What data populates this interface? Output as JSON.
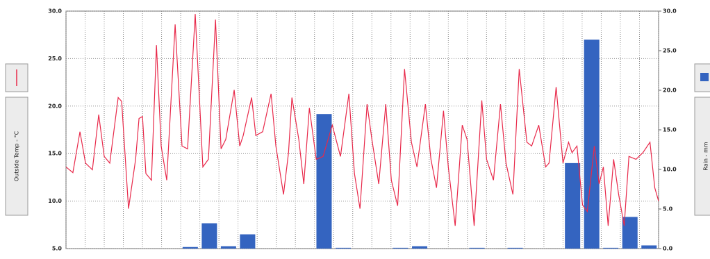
{
  "chart_data": {
    "type": "line",
    "ylabel": "Outside Temp - °C",
    "y2label": "Rain - mm",
    "xlim": [
      0,
      31
    ],
    "xticks": [
      0,
      1,
      2,
      3,
      4,
      5,
      6,
      7,
      8,
      9,
      10,
      11,
      12,
      13,
      14,
      15,
      16,
      17,
      18,
      19,
      20,
      21,
      22,
      23,
      24,
      25,
      26,
      27,
      28,
      29,
      30,
      31
    ],
    "ylim": [
      5,
      30
    ],
    "yticks": [
      {
        "value": 5,
        "label": "5.0"
      },
      {
        "value": 10,
        "label": "10.0"
      },
      {
        "value": 15,
        "label": "15.0"
      },
      {
        "value": 20,
        "label": "20.0"
      },
      {
        "value": 25,
        "label": "25.0"
      },
      {
        "value": 30,
        "label": "30.0"
      }
    ],
    "y2lim": [
      0,
      30
    ],
    "y2ticks": [
      {
        "value": 0,
        "label": "0.0"
      },
      {
        "value": 5,
        "label": "5.0"
      },
      {
        "value": 10,
        "label": "10.0"
      },
      {
        "value": 15,
        "label": "15.0"
      },
      {
        "value": 20,
        "label": "20.0"
      },
      {
        "value": 25,
        "label": "25.0"
      },
      {
        "value": 30,
        "label": "30.0"
      }
    ],
    "grid": true,
    "series": [
      {
        "type": "line",
        "color": "#e8294a",
        "x": [
          0,
          0.36,
          0.73,
          1.02,
          1.38,
          1.71,
          2.0,
          2.29,
          2.73,
          2.91,
          3.27,
          3.64,
          3.82,
          4.0,
          4.18,
          4.47,
          4.73,
          4.98,
          5.27,
          5.71,
          6.07,
          6.36,
          6.76,
          7.16,
          7.45,
          7.82,
          8.11,
          8.36,
          8.8,
          9.09,
          9.27,
          9.71,
          9.93,
          10.29,
          10.73,
          10.98,
          11.38,
          11.64,
          11.82,
          12.18,
          12.44,
          12.73,
          13.09,
          13.45,
          13.93,
          14.36,
          14.8,
          15.09,
          15.38,
          15.75,
          16.0,
          16.36,
          16.73,
          17.02,
          17.35,
          17.71,
          18.07,
          18.36,
          18.8,
          19.09,
          19.38,
          19.75,
          20.0,
          20.36,
          20.73,
          20.98,
          21.35,
          21.75,
          22.0,
          22.36,
          22.73,
          23.02,
          23.38,
          23.71,
          24.11,
          24.36,
          24.73,
          25.09,
          25.27,
          25.64,
          26.0,
          26.29,
          26.47,
          26.73,
          27.02,
          27.27,
          27.64,
          27.89,
          28.11,
          28.36,
          28.65,
          28.91,
          29.2,
          29.45,
          29.82,
          30.18,
          30.55,
          30.8,
          31.0
        ],
        "values": [
          13.6,
          13.0,
          17.3,
          14.0,
          13.3,
          19.1,
          14.7,
          14.0,
          20.9,
          20.5,
          9.2,
          14.4,
          18.7,
          18.9,
          12.9,
          12.2,
          26.4,
          15.8,
          12.2,
          28.6,
          15.8,
          15.5,
          29.7,
          13.6,
          14.4,
          29.1,
          15.5,
          16.5,
          21.7,
          15.8,
          16.9,
          20.9,
          16.9,
          17.3,
          21.3,
          15.8,
          10.7,
          15.1,
          20.9,
          16.5,
          11.8,
          19.8,
          14.4,
          14.7,
          18.0,
          14.7,
          21.3,
          12.9,
          9.2,
          20.2,
          16.5,
          11.8,
          20.2,
          12.2,
          9.5,
          23.9,
          16.2,
          13.6,
          20.2,
          14.4,
          11.4,
          19.5,
          13.6,
          7.4,
          18.0,
          16.5,
          7.4,
          20.6,
          14.4,
          12.2,
          20.2,
          14.0,
          10.7,
          23.9,
          16.2,
          15.8,
          18.0,
          13.6,
          14.0,
          22.0,
          14.0,
          16.2,
          15.1,
          15.8,
          9.6,
          8.9,
          15.8,
          11.8,
          13.6,
          7.4,
          14.4,
          10.7,
          7.4,
          14.7,
          14.4,
          15.1,
          16.2,
          11.4,
          10.0
        ]
      },
      {
        "type": "bar",
        "axis": "y2",
        "color": "#3464c0",
        "x": [
          6.5,
          7.5,
          8.5,
          9.5,
          13.5,
          14.5,
          17.5,
          18.5,
          21.5,
          23.5,
          26.5,
          27.5,
          28.5,
          29.5,
          30.5
        ],
        "values": [
          0.2,
          3.2,
          0.3,
          1.8,
          17.0,
          0.1,
          0.1,
          0.3,
          0.1,
          0.1,
          10.8,
          26.4,
          0.1,
          4.0,
          0.4
        ]
      }
    ]
  }
}
